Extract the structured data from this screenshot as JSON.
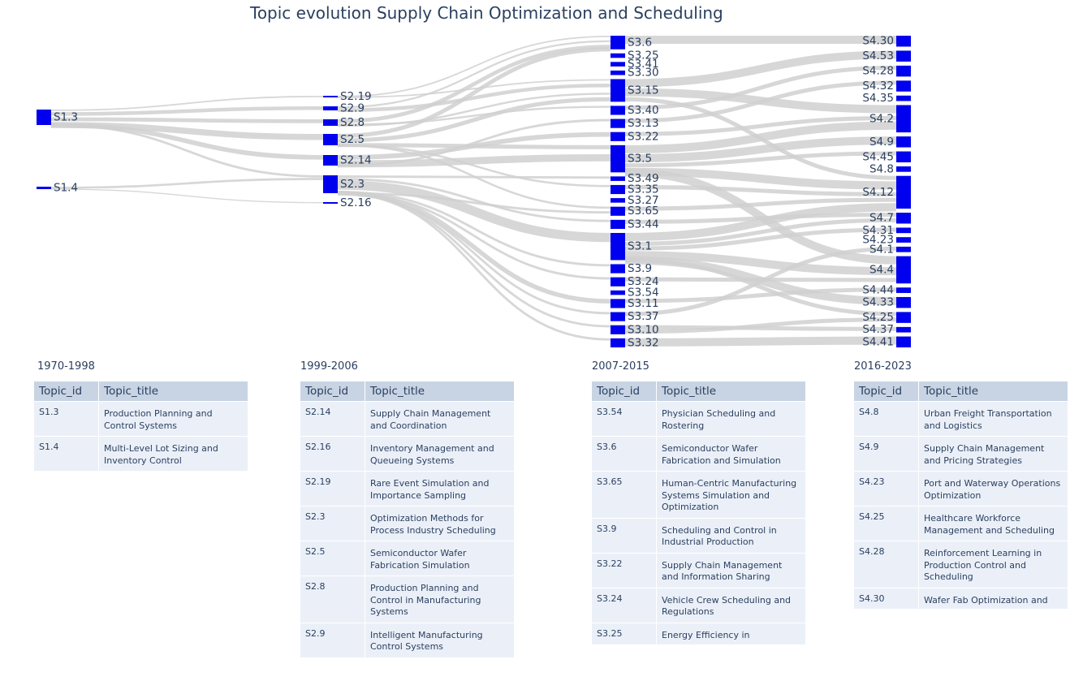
{
  "title": "Topic evolution Supply Chain Optimization and Scheduling",
  "colors": {
    "node": "#0000ee",
    "link": "#d0d0d0",
    "text": "#2a3f5f",
    "header_bg": "#c8d4e3",
    "cell_bg": "#ebf0f8"
  },
  "chart_data": {
    "type": "sankey",
    "columns": [
      {
        "period": "1970-1998",
        "nodes": [
          {
            "id": "S1.3",
            "weight": 6
          },
          {
            "id": "S1.4",
            "weight": 2
          }
        ]
      },
      {
        "period": "1999-2006",
        "nodes": [
          {
            "id": "S2.19",
            "weight": 1
          },
          {
            "id": "S2.9",
            "weight": 2
          },
          {
            "id": "S2.8",
            "weight": 3
          },
          {
            "id": "S2.5",
            "weight": 5
          },
          {
            "id": "S2.14",
            "weight": 4
          },
          {
            "id": "S2.3",
            "weight": 7
          },
          {
            "id": "S2.16",
            "weight": 1
          }
        ]
      },
      {
        "period": "2007-2015",
        "nodes": [
          {
            "id": "S3.6",
            "weight": 3
          },
          {
            "id": "S3.25",
            "weight": 1
          },
          {
            "id": "S3.41",
            "weight": 1
          },
          {
            "id": "S3.30",
            "weight": 1
          },
          {
            "id": "S3.15",
            "weight": 5
          },
          {
            "id": "S3.40",
            "weight": 2
          },
          {
            "id": "S3.13",
            "weight": 2
          },
          {
            "id": "S3.22",
            "weight": 2
          },
          {
            "id": "S3.5",
            "weight": 6
          },
          {
            "id": "S3.49",
            "weight": 1
          },
          {
            "id": "S3.35",
            "weight": 2
          },
          {
            "id": "S3.27",
            "weight": 1
          },
          {
            "id": "S3.65",
            "weight": 2
          },
          {
            "id": "S3.44",
            "weight": 2
          },
          {
            "id": "S3.1",
            "weight": 6
          },
          {
            "id": "S3.9",
            "weight": 2
          },
          {
            "id": "S3.24",
            "weight": 2
          },
          {
            "id": "S3.54",
            "weight": 1
          },
          {
            "id": "S3.11",
            "weight": 2
          },
          {
            "id": "S3.37",
            "weight": 2
          },
          {
            "id": "S3.10",
            "weight": 2
          },
          {
            "id": "S3.32",
            "weight": 2
          }
        ]
      },
      {
        "period": "2016-2023",
        "nodes": [
          {
            "id": "S4.30",
            "weight": 2
          },
          {
            "id": "S4.53",
            "weight": 2
          },
          {
            "id": "S4.28",
            "weight": 2
          },
          {
            "id": "S4.32",
            "weight": 2
          },
          {
            "id": "S4.35",
            "weight": 1
          },
          {
            "id": "S4.2",
            "weight": 5
          },
          {
            "id": "S4.9",
            "weight": 2
          },
          {
            "id": "S4.45",
            "weight": 2
          },
          {
            "id": "S4.8",
            "weight": 1
          },
          {
            "id": "S4.12",
            "weight": 6
          },
          {
            "id": "S4.7",
            "weight": 2
          },
          {
            "id": "S4.31",
            "weight": 1
          },
          {
            "id": "S4.23",
            "weight": 1
          },
          {
            "id": "S4.1",
            "weight": 1
          },
          {
            "id": "S4.4",
            "weight": 5
          },
          {
            "id": "S4.44",
            "weight": 1
          },
          {
            "id": "S4.33",
            "weight": 2
          },
          {
            "id": "S4.25",
            "weight": 2
          },
          {
            "id": "S4.37",
            "weight": 1
          },
          {
            "id": "S4.41",
            "weight": 2
          }
        ]
      }
    ],
    "links": [
      [
        "S1.3",
        "S2.19",
        1
      ],
      [
        "S1.3",
        "S2.9",
        2
      ],
      [
        "S1.3",
        "S2.8",
        2
      ],
      [
        "S1.3",
        "S2.5",
        3
      ],
      [
        "S1.3",
        "S2.14",
        2
      ],
      [
        "S1.3",
        "S2.3",
        1
      ],
      [
        "S1.4",
        "S2.3",
        2
      ],
      [
        "S1.4",
        "S2.16",
        1
      ],
      [
        "S2.19",
        "S3.6",
        1
      ],
      [
        "S2.19",
        "S3.15",
        1
      ],
      [
        "S2.9",
        "S3.6",
        1
      ],
      [
        "S2.9",
        "S3.15",
        2
      ],
      [
        "S2.8",
        "S3.6",
        2
      ],
      [
        "S2.8",
        "S3.40",
        1
      ],
      [
        "S2.8",
        "S3.15",
        1
      ],
      [
        "S2.5",
        "S3.6",
        2
      ],
      [
        "S2.5",
        "S3.15",
        2
      ],
      [
        "S2.5",
        "S3.5",
        2
      ],
      [
        "S2.5",
        "S3.35",
        1
      ],
      [
        "S2.5",
        "S3.65",
        1
      ],
      [
        "S2.14",
        "S3.22",
        2
      ],
      [
        "S2.14",
        "S3.5",
        3
      ],
      [
        "S2.14",
        "S3.13",
        1
      ],
      [
        "S2.3",
        "S3.49",
        1
      ],
      [
        "S2.3",
        "S3.44",
        1
      ],
      [
        "S2.3",
        "S3.1",
        4
      ],
      [
        "S2.3",
        "S3.9",
        1
      ],
      [
        "S2.3",
        "S3.24",
        1
      ],
      [
        "S2.3",
        "S3.11",
        2
      ],
      [
        "S2.3",
        "S3.37",
        1
      ],
      [
        "S2.3",
        "S3.10",
        1
      ],
      [
        "S2.3",
        "S3.32",
        1
      ],
      [
        "S2.3",
        "S3.65",
        1
      ],
      [
        "S3.6",
        "S4.30",
        2
      ],
      [
        "S3.15",
        "S4.53",
        2
      ],
      [
        "S3.15",
        "S4.2",
        2
      ],
      [
        "S3.15",
        "S4.12",
        1
      ],
      [
        "S3.40",
        "S4.28",
        1
      ],
      [
        "S3.13",
        "S4.32",
        1
      ],
      [
        "S3.22",
        "S4.2",
        1
      ],
      [
        "S3.5",
        "S4.2",
        2
      ],
      [
        "S3.5",
        "S4.9",
        2
      ],
      [
        "S3.5",
        "S4.45",
        1
      ],
      [
        "S3.5",
        "S4.12",
        2
      ],
      [
        "S3.5",
        "S4.4",
        2
      ],
      [
        "S3.35",
        "S4.12",
        1
      ],
      [
        "S3.65",
        "S4.12",
        1
      ],
      [
        "S3.44",
        "S4.7",
        1
      ],
      [
        "S3.1",
        "S4.12",
        2
      ],
      [
        "S3.1",
        "S4.7",
        1
      ],
      [
        "S3.1",
        "S4.31",
        1
      ],
      [
        "S3.1",
        "S4.4",
        2
      ],
      [
        "S3.1",
        "S4.33",
        2
      ],
      [
        "S3.1",
        "S4.25",
        1
      ],
      [
        "S3.24",
        "S4.4",
        1
      ],
      [
        "S3.11",
        "S4.44",
        1
      ],
      [
        "S3.37",
        "S4.1",
        1
      ],
      [
        "S3.10",
        "S4.37",
        1
      ],
      [
        "S3.10",
        "S4.25",
        1
      ],
      [
        "S3.32",
        "S4.41",
        2
      ]
    ]
  },
  "tables": {
    "headers": [
      "Topic_id",
      "Topic_title"
    ],
    "panels": [
      {
        "period": "1970-1998",
        "rows": [
          {
            "id": "S1.3",
            "title": "Production Planning and Control Systems"
          },
          {
            "id": "S1.4",
            "title": "Multi-Level Lot Sizing and Inventory Control"
          }
        ]
      },
      {
        "period": "1999-2006",
        "rows": [
          {
            "id": "S2.14",
            "title": "Supply Chain Management and Coordination"
          },
          {
            "id": "S2.16",
            "title": "Inventory Management and Queueing Systems"
          },
          {
            "id": "S2.19",
            "title": "Rare Event Simulation and Importance Sampling"
          },
          {
            "id": "S2.3",
            "title": "Optimization Methods for Process Industry Scheduling"
          },
          {
            "id": "S2.5",
            "title": "Semiconductor Wafer Fabrication Simulation"
          },
          {
            "id": "S2.8",
            "title": "Production Planning and Control in Manufacturing Systems"
          },
          {
            "id": "S2.9",
            "title": "Intelligent Manufacturing Control Systems"
          }
        ]
      },
      {
        "period": "2007-2015",
        "rows": [
          {
            "id": "S3.54",
            "title": "Physician Scheduling and Rostering"
          },
          {
            "id": "S3.6",
            "title": "Semiconductor Wafer Fabrication and Simulation"
          },
          {
            "id": "S3.65",
            "title": "Human-Centric Manufacturing Systems Simulation and Optimization"
          },
          {
            "id": "S3.9",
            "title": "Scheduling and Control in Industrial Production"
          },
          {
            "id": "S3.22",
            "title": "Supply Chain Management and Information Sharing"
          },
          {
            "id": "S3.24",
            "title": "Vehicle Crew Scheduling and Regulations"
          },
          {
            "id": "S3.25",
            "title": "Energy Efficiency in"
          }
        ]
      },
      {
        "period": "2016-2023",
        "rows": [
          {
            "id": "S4.8",
            "title": "Urban Freight Transportation and Logistics"
          },
          {
            "id": "S4.9",
            "title": "Supply Chain Management and Pricing Strategies"
          },
          {
            "id": "S4.23",
            "title": "Port and Waterway Operations Optimization"
          },
          {
            "id": "S4.25",
            "title": "Healthcare Workforce Management and Scheduling"
          },
          {
            "id": "S4.28",
            "title": "Reinforcement Learning in Production Control and Scheduling"
          },
          {
            "id": "S4.30",
            "title": "Wafer Fab Optimization and"
          }
        ]
      }
    ]
  }
}
